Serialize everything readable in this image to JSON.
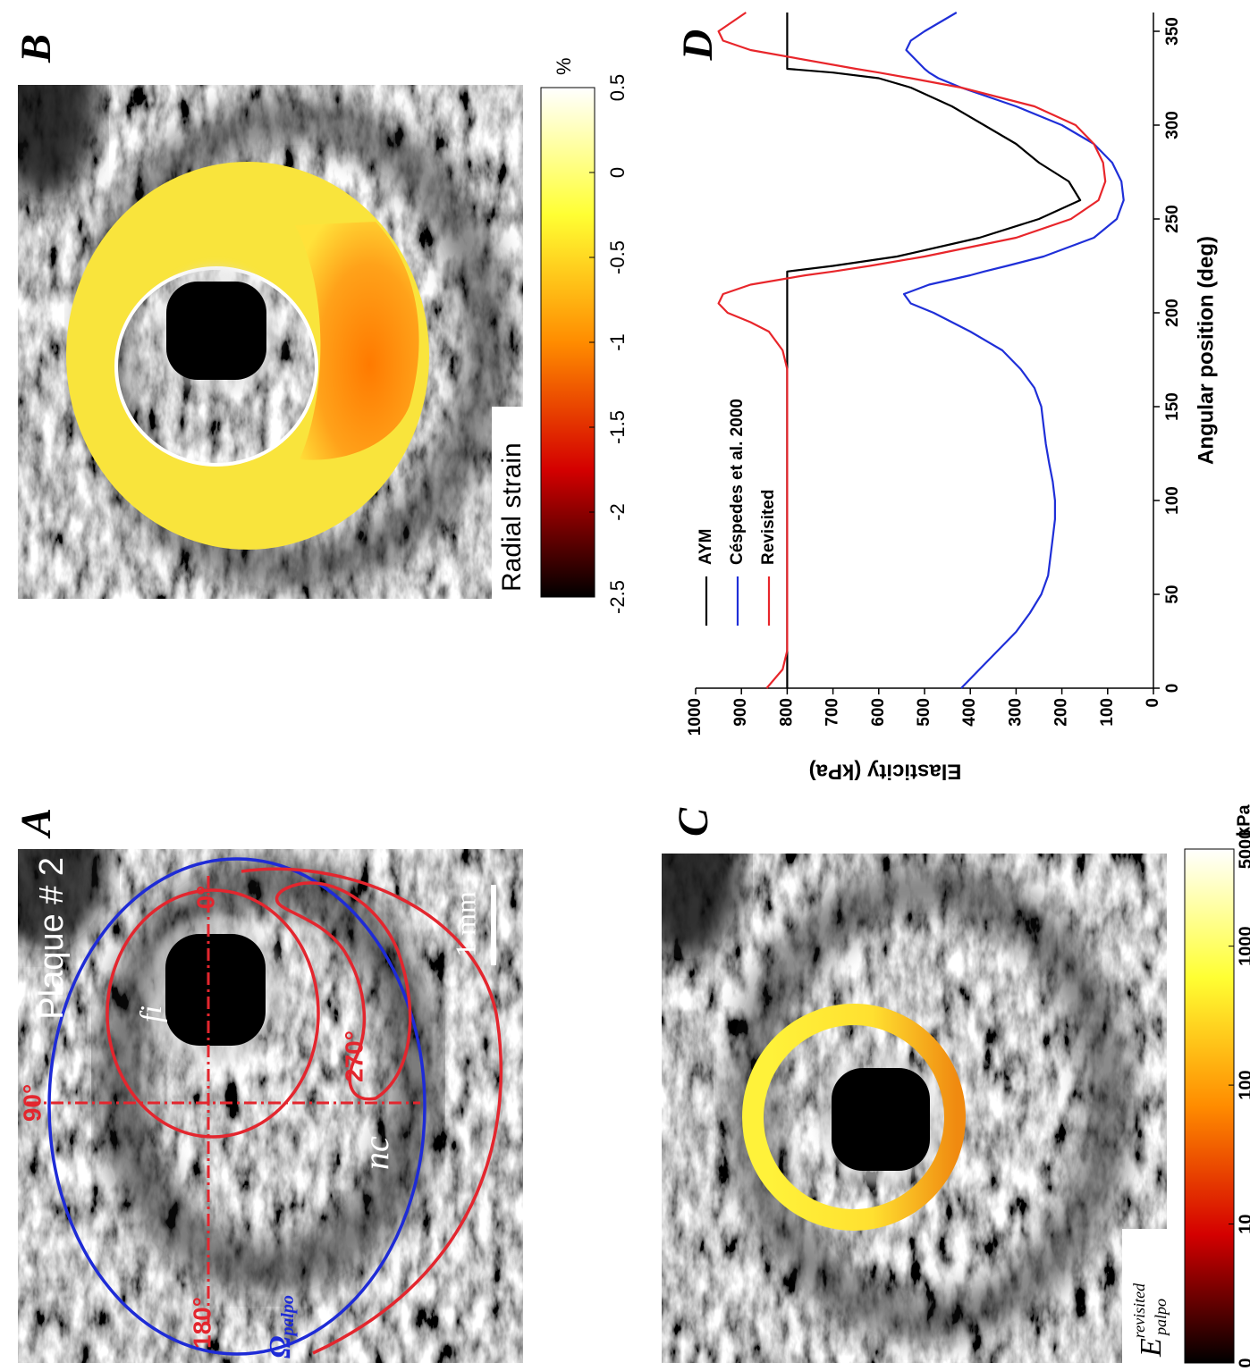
{
  "panels": {
    "a": {
      "letter": "A",
      "title": "Plaque # 2",
      "angles": [
        "0°",
        "90°",
        "180°",
        "270°"
      ],
      "regions": [
        "fi",
        "nc"
      ],
      "contour_symbol": "Ω",
      "contour_subscript": "palpo",
      "scale_bar": "1 mm"
    },
    "b": {
      "letter": "B",
      "colorbar": {
        "label": "Radial strain",
        "unit": "%",
        "lim": [
          -2.5,
          0.5
        ],
        "ticks": [
          -2.5,
          -2,
          -1.5,
          -1,
          -0.5,
          0,
          0.5
        ],
        "colormap": [
          "#000000",
          "#d40000",
          "#ff8c00",
          "#ffff33",
          "#ffffff"
        ]
      }
    },
    "c": {
      "letter": "C",
      "colorbar": {
        "symbol": "E",
        "subscript": "palpo",
        "superscript": "revisited",
        "unit": "kPa",
        "scale": "log",
        "lim": [
          0,
          5000
        ],
        "ticks": [
          0,
          10,
          100,
          1000,
          5000
        ],
        "colormap": [
          "#000000",
          "#d40000",
          "#ff8c00",
          "#ffff33",
          "#ffffff"
        ]
      }
    },
    "d": {
      "letter": "D"
    }
  },
  "chart_data": {
    "type": "line",
    "x_label": "Angular position (deg)",
    "y_label": "Elasticity (kPa)",
    "x": [
      0,
      10,
      20,
      30,
      40,
      50,
      60,
      70,
      80,
      90,
      100,
      110,
      120,
      130,
      140,
      150,
      160,
      170,
      180,
      190,
      195,
      200,
      205,
      210,
      215,
      220,
      222,
      225,
      230,
      240,
      250,
      260,
      270,
      280,
      290,
      300,
      310,
      320,
      325,
      328,
      330,
      340,
      345,
      350,
      360
    ],
    "series": [
      {
        "name": "AYM",
        "color": "#000000",
        "values": [
          800,
          800,
          800,
          800,
          800,
          800,
          800,
          800,
          800,
          800,
          800,
          800,
          800,
          800,
          800,
          800,
          800,
          800,
          800,
          800,
          800,
          800,
          800,
          800,
          800,
          800,
          800,
          700,
          560,
          380,
          250,
          160,
          185,
          250,
          300,
          370,
          440,
          530,
          600,
          700,
          800,
          800,
          800,
          800,
          800
        ]
      },
      {
        "name": "Céspedes et al. 2000",
        "color": "#1f2fd8",
        "values": [
          420,
          380,
          340,
          300,
          270,
          245,
          230,
          225,
          220,
          215,
          215,
          220,
          228,
          235,
          240,
          245,
          260,
          290,
          330,
          400,
          440,
          480,
          530,
          545,
          490,
          400,
          370,
          320,
          240,
          130,
          80,
          65,
          70,
          90,
          130,
          200,
          300,
          420,
          470,
          490,
          500,
          540,
          530,
          500,
          430
        ]
      },
      {
        "name": "Revisited",
        "color": "#e8262b",
        "values": [
          845,
          810,
          800,
          800,
          800,
          800,
          800,
          800,
          800,
          800,
          800,
          800,
          800,
          800,
          800,
          800,
          800,
          800,
          810,
          840,
          880,
          930,
          950,
          940,
          880,
          760,
          700,
          620,
          500,
          300,
          180,
          120,
          105,
          110,
          130,
          170,
          260,
          420,
          530,
          600,
          650,
          880,
          940,
          950,
          890
        ]
      }
    ],
    "xlim": [
      0,
      360
    ],
    "ylim": [
      0,
      1000
    ],
    "xticks": [
      0,
      50,
      100,
      150,
      200,
      250,
      300,
      350
    ],
    "yticks": [
      0,
      100,
      200,
      300,
      400,
      500,
      600,
      700,
      800,
      900,
      1000
    ],
    "grid": false,
    "legend": "upper left"
  }
}
